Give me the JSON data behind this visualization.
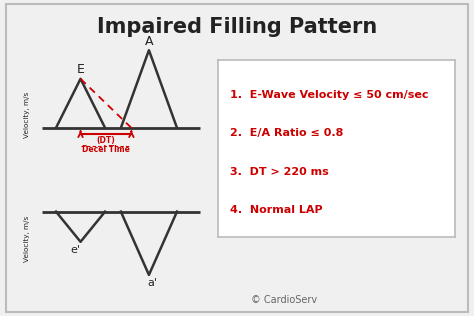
{
  "title": "Impaired Filling Pattern",
  "title_fontsize": 15,
  "title_fontweight": "bold",
  "background_color": "#f0f0f0",
  "border_color": "#bbbbbb",
  "text_color_dark": "#222222",
  "text_color_red": "#cc0000",
  "bullet_items": [
    "1.  E-Wave Velocity ≤ 50 cm/sec",
    "2.  E/A Ratio ≤ 0.8",
    "3.  DT > 220 ms",
    "4.  Normal LAP"
  ],
  "ylabel_top": "Velocity, m/s",
  "ylabel_bottom": "Velocity, m/s",
  "e_label": "E",
  "a_label": "A",
  "e_prime_label": "e'",
  "a_prime_label": "a'",
  "dt_label_line1": "(DT)",
  "dt_label_line2": "Decel Time",
  "copyright": "© CardioServ",
  "wave_color": "#333333",
  "dt_color": "#cc0000",
  "box_border_color": "#bbbbbb",
  "box_bg": "#ffffff"
}
